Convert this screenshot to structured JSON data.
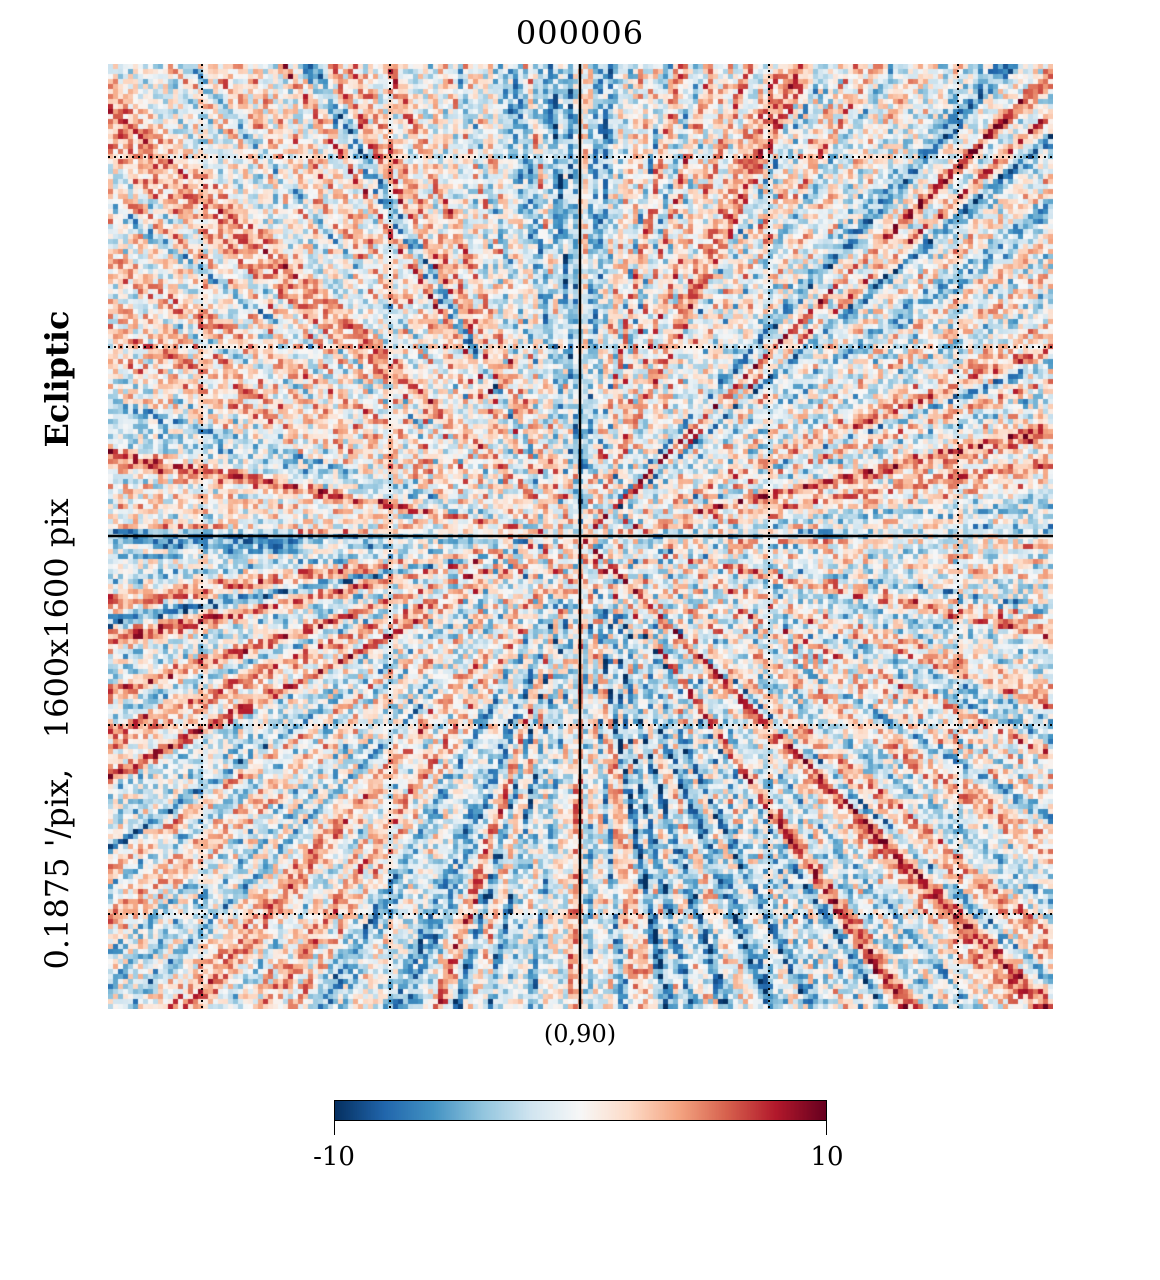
{
  "chart_data": {
    "type": "heatmap",
    "title": "000006",
    "projection": "gnomonic",
    "coord_system": "Ecliptic",
    "resolution_label": "0.1875 '/pix,",
    "size_label": "1600x1600 pix",
    "center_label": "(0,90)",
    "colormap": "RdBu_r",
    "vmin": -10,
    "vmax": 10,
    "colorbar_ticks": [
      "-10",
      "10"
    ],
    "grid": true,
    "colors": {
      "low": "#053061",
      "mid": "#f7f7f7",
      "high": "#67001f",
      "grid": "#000000"
    }
  }
}
